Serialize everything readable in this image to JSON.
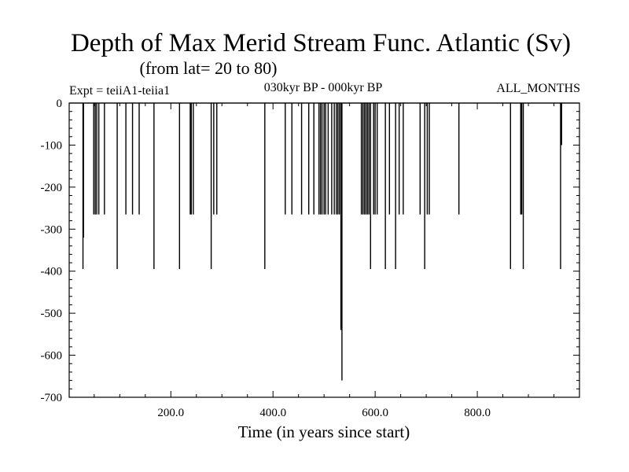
{
  "chart_data": {
    "type": "line",
    "title": "Depth of Max Merid Stream Func. Atlantic (Sv)",
    "subtitle": "(from lat= 20 to 80)",
    "expt_label": "Expt = teiiA1-teiia1",
    "period_label": "030kyr BP - 000kyr BP",
    "months_label": "ALL_MONTHS",
    "xlabel": "Time (in years since start)",
    "ylabel": "",
    "xlim": [
      1,
      1000
    ],
    "ylim": [
      -700,
      0
    ],
    "xticks": [
      200,
      400,
      600,
      800
    ],
    "xtick_labels": [
      "200.0",
      "400.0",
      "600.0",
      "800.0"
    ],
    "yticks": [
      0,
      -100,
      -200,
      -300,
      -400,
      -500,
      -600,
      -700
    ],
    "ytick_labels": [
      "0",
      "-100",
      "-200",
      "-300",
      "-400",
      "-500",
      "-600",
      "-700"
    ],
    "baseline": 0,
    "spikes": [
      {
        "x": 28,
        "y": -395
      },
      {
        "x": 29,
        "y": -320
      },
      {
        "x": 49,
        "y": -265
      },
      {
        "x": 52,
        "y": -265
      },
      {
        "x": 55,
        "y": -265
      },
      {
        "x": 59,
        "y": -265
      },
      {
        "x": 70,
        "y": -265
      },
      {
        "x": 95,
        "y": -395
      },
      {
        "x": 112,
        "y": -265
      },
      {
        "x": 125,
        "y": -265
      },
      {
        "x": 138,
        "y": -265
      },
      {
        "x": 167,
        "y": -395
      },
      {
        "x": 217,
        "y": -395
      },
      {
        "x": 238,
        "y": -265
      },
      {
        "x": 240,
        "y": -265
      },
      {
        "x": 244,
        "y": -265
      },
      {
        "x": 279,
        "y": -395
      },
      {
        "x": 284,
        "y": -265
      },
      {
        "x": 290,
        "y": -265
      },
      {
        "x": 384,
        "y": -395
      },
      {
        "x": 424,
        "y": -265
      },
      {
        "x": 437,
        "y": -265
      },
      {
        "x": 456,
        "y": -265
      },
      {
        "x": 470,
        "y": -265
      },
      {
        "x": 480,
        "y": -265
      },
      {
        "x": 490,
        "y": -265
      },
      {
        "x": 493,
        "y": -265
      },
      {
        "x": 496,
        "y": -265
      },
      {
        "x": 500,
        "y": -265
      },
      {
        "x": 503,
        "y": -265
      },
      {
        "x": 508,
        "y": -265
      },
      {
        "x": 515,
        "y": -265
      },
      {
        "x": 520,
        "y": -265
      },
      {
        "x": 524,
        "y": -265
      },
      {
        "x": 527,
        "y": -265
      },
      {
        "x": 530,
        "y": -265
      },
      {
        "x": 533,
        "y": -540
      },
      {
        "x": 535,
        "y": -660
      },
      {
        "x": 573,
        "y": -265
      },
      {
        "x": 576,
        "y": -265
      },
      {
        "x": 579,
        "y": -265
      },
      {
        "x": 582,
        "y": -265
      },
      {
        "x": 585,
        "y": -265
      },
      {
        "x": 588,
        "y": -265
      },
      {
        "x": 591,
        "y": -395
      },
      {
        "x": 597,
        "y": -265
      },
      {
        "x": 600,
        "y": -265
      },
      {
        "x": 604,
        "y": -265
      },
      {
        "x": 620,
        "y": -395
      },
      {
        "x": 628,
        "y": -265
      },
      {
        "x": 640,
        "y": -395
      },
      {
        "x": 647,
        "y": -265
      },
      {
        "x": 655,
        "y": -265
      },
      {
        "x": 688,
        "y": -265
      },
      {
        "x": 697,
        "y": -395
      },
      {
        "x": 702,
        "y": -265
      },
      {
        "x": 706,
        "y": -265
      },
      {
        "x": 764,
        "y": -265
      },
      {
        "x": 865,
        "y": -395
      },
      {
        "x": 885,
        "y": -265
      },
      {
        "x": 887,
        "y": -265
      },
      {
        "x": 890,
        "y": -395
      },
      {
        "x": 963,
        "y": -395
      },
      {
        "x": 965,
        "y": -100
      }
    ]
  }
}
